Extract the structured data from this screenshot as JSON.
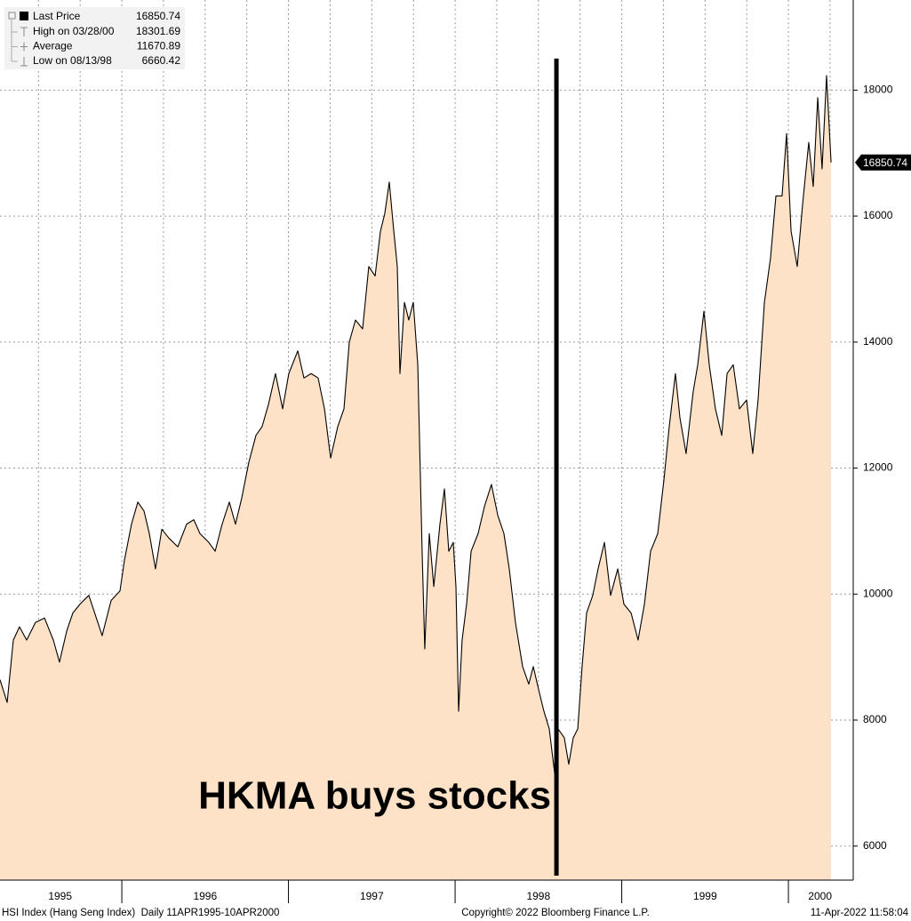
{
  "chart_data": {
    "type": "area",
    "x": [
      1995.269,
      1995.312,
      1995.349,
      1995.386,
      1995.429,
      1995.482,
      1995.536,
      1995.589,
      1995.626,
      1995.669,
      1995.706,
      1995.749,
      1995.802,
      1995.856,
      1995.882,
      1995.936,
      1995.989,
      1996.016,
      1996.058,
      1996.096,
      1996.133,
      1996.165,
      1996.202,
      1996.24,
      1996.282,
      1996.336,
      1996.389,
      1996.432,
      1996.469,
      1996.522,
      1996.56,
      1996.602,
      1996.645,
      1996.682,
      1996.72,
      1996.762,
      1996.805,
      1996.842,
      1996.88,
      1996.922,
      1996.965,
      1997.002,
      1997.056,
      1997.093,
      1997.136,
      1997.178,
      1997.216,
      1997.253,
      1997.296,
      1997.333,
      1997.365,
      1997.402,
      1997.445,
      1997.482,
      1997.52,
      1997.552,
      1997.578,
      1997.605,
      1997.632,
      1997.653,
      1997.669,
      1997.696,
      1997.722,
      1997.749,
      1997.776,
      1997.802,
      1997.818,
      1997.845,
      1997.872,
      1997.909,
      1997.936,
      1997.962,
      1997.989,
      1998.005,
      1998.021,
      1998.042,
      1998.069,
      1998.096,
      1998.138,
      1998.176,
      1998.218,
      1998.256,
      1998.293,
      1998.325,
      1998.362,
      1998.405,
      1998.442,
      1998.469,
      1998.506,
      1998.533,
      1998.565,
      1998.597,
      1998.618,
      1998.655,
      1998.682,
      1998.709,
      1998.736,
      1998.762,
      1998.789,
      1998.826,
      1998.858,
      1998.896,
      1998.933,
      1998.976,
      1999.013,
      1999.056,
      1999.098,
      1999.136,
      1999.173,
      1999.216,
      1999.253,
      1999.285,
      1999.322,
      1999.349,
      1999.386,
      1999.429,
      1999.456,
      1999.493,
      1999.525,
      1999.562,
      1999.6,
      1999.632,
      1999.669,
      1999.706,
      1999.749,
      1999.786,
      1999.818,
      1999.856,
      1999.893,
      1999.925,
      1999.962,
      1999.989,
      2000.016,
      2000.053,
      2000.085,
      2000.122,
      2000.149,
      2000.176,
      2000.202,
      2000.229,
      2000.256
    ],
    "series": [
      {
        "name": "Last Price",
        "color": "#000000",
        "fill": "#fde2c7",
        "values": [
          8640,
          8280,
          9270,
          9480,
          9270,
          9550,
          9620,
          9270,
          8920,
          9410,
          9700,
          9840,
          9980,
          9550,
          9340,
          9900,
          10050,
          10540,
          11110,
          11460,
          11320,
          10960,
          10400,
          11030,
          10890,
          10750,
          11110,
          11180,
          10960,
          10820,
          10680,
          11110,
          11460,
          11110,
          11530,
          12090,
          12520,
          12660,
          13010,
          13500,
          12940,
          13500,
          13860,
          13430,
          13500,
          13430,
          12940,
          12160,
          12660,
          12940,
          14000,
          14350,
          14210,
          15200,
          15050,
          15760,
          16040,
          16540,
          15760,
          15200,
          13500,
          14630,
          14350,
          14630,
          13640,
          10680,
          9130,
          10960,
          10120,
          11110,
          11670,
          10680,
          10820,
          10120,
          8140,
          9270,
          9840,
          10680,
          10960,
          11390,
          11740,
          11250,
          10960,
          10400,
          9550,
          8850,
          8570,
          8850,
          8430,
          8140,
          7860,
          7160,
          7860,
          7720,
          7300,
          7720,
          7860,
          8850,
          9700,
          9980,
          10400,
          10820,
          9980,
          10400,
          9840,
          9700,
          9270,
          9840,
          10680,
          10960,
          11810,
          12660,
          13500,
          12800,
          12230,
          13220,
          13640,
          14490,
          13640,
          12940,
          12520,
          13500,
          13640,
          12940,
          13080,
          12230,
          13080,
          14630,
          15340,
          16320,
          16320,
          17310,
          15760,
          15200,
          16180,
          17170,
          16470,
          17880,
          16750,
          18230,
          16850.74
        ]
      }
    ],
    "xlim": [
      1995.269,
      2000.389
    ],
    "ylim": [
      5460,
      19430
    ],
    "xticks": [
      {
        "value": 1995.63,
        "label": "1995"
      },
      {
        "value": 1996.5,
        "label": "1996"
      },
      {
        "value": 1997.5,
        "label": "1997"
      },
      {
        "value": 1998.5,
        "label": "1998"
      },
      {
        "value": 1999.5,
        "label": "1999"
      },
      {
        "value": 2000.19,
        "label": "2000"
      }
    ],
    "year_boundaries": [
      1996,
      1997,
      1998,
      1999,
      2000
    ],
    "xgrid": [
      1995.5,
      1995.75,
      1996,
      1996.25,
      1996.5,
      1996.75,
      1997,
      1997.25,
      1997.5,
      1997.75,
      1998,
      1998.25,
      1998.5,
      1998.75,
      1999,
      1999.25,
      1999.5,
      1999.75,
      2000,
      2000.25
    ],
    "yticks": [
      6000,
      8000,
      10000,
      12000,
      14000,
      16000,
      18000
    ],
    "grid": true,
    "last_value": 16850.74,
    "stats": [
      {
        "label": "High on 03/28/00",
        "value": 18301.69
      },
      {
        "label": "Average",
        "value": 11670.89
      },
      {
        "label": "Low on 08/13/98",
        "value": 6660.42
      }
    ],
    "annotation": {
      "text": "HKMA buys stocks",
      "x": 1998.608,
      "y_top": 18500
    },
    "footer": {
      "left": "HSI Index (Hang Seng Index)  Daily 11APR1995-10APR2000",
      "center": "Copyright© 2022 Bloomberg Finance L.P.",
      "right": "11-Apr-2022 11:58:04"
    }
  }
}
